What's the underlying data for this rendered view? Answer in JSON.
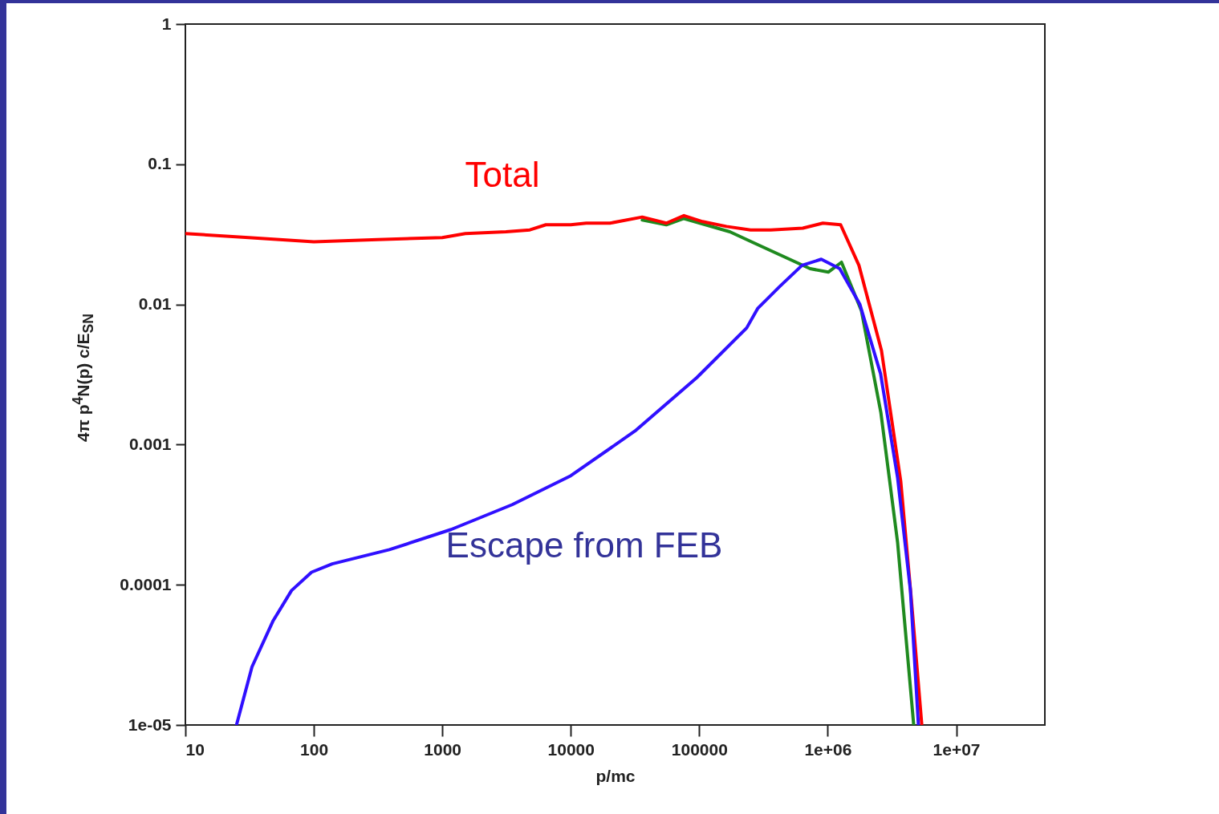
{
  "chart_data": {
    "type": "line",
    "xlabel": "p/mc",
    "ylabel": "4π p$^{4}$N(p) c/E$_{SN}$",
    "log": "xy",
    "grid": false,
    "legend": false,
    "line_style": "solid",
    "marker": "none",
    "xlim": [
      10,
      49000000
    ],
    "ylim": [
      1e-05,
      1
    ],
    "xticks": [
      10,
      100,
      1000,
      10000,
      100000,
      {
        "value": 1000000,
        "label": "1e+06"
      },
      {
        "value": 10000000,
        "label": "1e+07"
      }
    ],
    "yticks": [
      {
        "value": 1e-05,
        "label": "1e-05"
      },
      0.0001,
      0.001,
      0.01,
      0.1,
      1
    ],
    "series": [
      {
        "color": "#1f8a1f",
        "x": [
          36000,
          55400,
          76000,
          173000,
          278000,
          729000,
          1010000,
          1280000,
          1830000,
          2590000,
          3500000,
          4670000
        ],
        "values": [
          0.04,
          0.037,
          0.041,
          0.033,
          0.027,
          0.018,
          0.017,
          0.02,
          0.009,
          0.0017,
          0.0002,
          1e-05
        ]
      },
      {
        "color": "#ff0000",
        "x": [
          10,
          31,
          100,
          313,
          1000,
          1510,
          3130,
          4800,
          6400,
          10000,
          13200,
          20200,
          36000,
          55400,
          76000,
          106000,
          163000,
          251000,
          360000,
          640000,
          917000,
          1260000,
          1750000,
          2620000,
          3700000,
          4470000,
          5400000
        ],
        "values": [
          0.032,
          0.03,
          0.028,
          0.029,
          0.03,
          0.032,
          0.033,
          0.034,
          0.037,
          0.037,
          0.038,
          0.038,
          0.042,
          0.038,
          0.043,
          0.039,
          0.036,
          0.034,
          0.034,
          0.035,
          0.038,
          0.037,
          0.019,
          0.0047,
          0.00055,
          8e-05,
          1e-05
        ]
      },
      {
        "color": "#3010ff",
        "x": [
          25,
          33,
          48,
          67,
          96,
          139,
          387,
          1170,
          3500,
          10000,
          31600,
          95500,
          234000,
          286000,
          422000,
          631000,
          891000,
          1240000,
          1780000,
          2580000,
          3500000,
          4400000,
          5080000
        ],
        "values": [
          1e-05,
          2.6e-05,
          5.5e-05,
          9.1e-05,
          0.000123,
          0.000141,
          0.000178,
          0.000248,
          0.000373,
          0.0006,
          0.00125,
          0.003,
          0.0068,
          0.0094,
          0.0134,
          0.019,
          0.021,
          0.018,
          0.01,
          0.0032,
          0.00058,
          9.2e-05,
          1e-05
        ]
      }
    ],
    "annotations": [
      "Total",
      "Escape from FEB"
    ]
  }
}
